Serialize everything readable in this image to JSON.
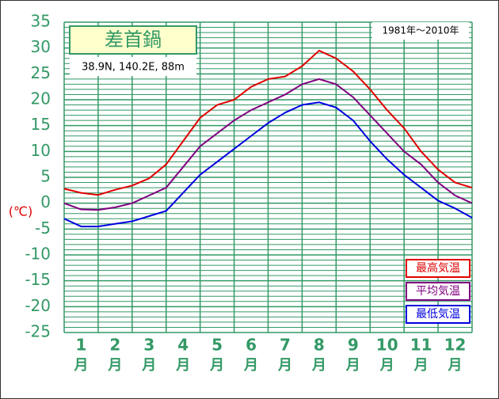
{
  "chart_data": {
    "type": "line",
    "title": "差首鍋",
    "subtitle": "38.9N, 140.2E, 88m",
    "period": "1981年〜2010年",
    "ylabel": "(℃)",
    "categories": [
      "1",
      "2",
      "3",
      "4",
      "5",
      "6",
      "7",
      "8",
      "9",
      "10",
      "11",
      "12"
    ],
    "month_unit": "月",
    "x": [
      0,
      0.5,
      1,
      1.5,
      2,
      2.5,
      3,
      3.5,
      4,
      4.5,
      5,
      5.5,
      6,
      6.5,
      7,
      7.5,
      8,
      8.5,
      9,
      9.5,
      10,
      10.5,
      11,
      11.5,
      12
    ],
    "xlim": [
      0,
      12
    ],
    "xticks": [
      0,
      1,
      2,
      3,
      4,
      5,
      6,
      7,
      8,
      9,
      10,
      11,
      12
    ],
    "ylim": [
      -25,
      35
    ],
    "yticks": [
      -25,
      -20,
      -15,
      -10,
      -5,
      0,
      5,
      10,
      15,
      20,
      25,
      30,
      35
    ],
    "yminorticks": [
      -24,
      -23,
      -22,
      -21,
      -19,
      -18,
      -17,
      -16,
      -14,
      -13,
      -12,
      -11,
      -9,
      -8,
      -7,
      -6,
      -4,
      -3,
      -2,
      -1,
      1,
      2,
      3,
      4,
      6,
      7,
      8,
      9,
      11,
      12,
      13,
      14,
      16,
      17,
      18,
      19,
      21,
      22,
      23,
      24,
      26,
      27,
      28,
      29,
      31,
      32,
      33,
      34
    ],
    "grid": true,
    "series": [
      {
        "name": "最高気温",
        "color": "#e00000",
        "values": [
          2.8,
          2.0,
          1.6,
          2.6,
          3.4,
          4.8,
          7.5,
          12,
          16.5,
          19,
          20,
          22.5,
          24,
          24.5,
          26.5,
          29.5,
          28,
          25.5,
          22,
          18,
          14.5,
          10,
          6.5,
          4.0,
          3.0
        ]
      },
      {
        "name": "平均気温",
        "color": "#800080",
        "values": [
          0,
          -1.2,
          -1.3,
          -0.8,
          0,
          1.5,
          3,
          7,
          11,
          13.5,
          16,
          18,
          19.5,
          21,
          23,
          24,
          23,
          20.5,
          17,
          13.5,
          10,
          7.5,
          4,
          1.5,
          0
        ]
      },
      {
        "name": "最低気温",
        "color": "#0000e0",
        "values": [
          -3,
          -4.5,
          -4.5,
          -4,
          -3.5,
          -2.5,
          -1.5,
          2,
          5.5,
          8,
          10.5,
          13,
          15.5,
          17.5,
          19,
          19.5,
          18.5,
          16,
          12,
          8.5,
          5.5,
          3,
          0.5,
          -1,
          -2.8
        ]
      }
    ]
  }
}
